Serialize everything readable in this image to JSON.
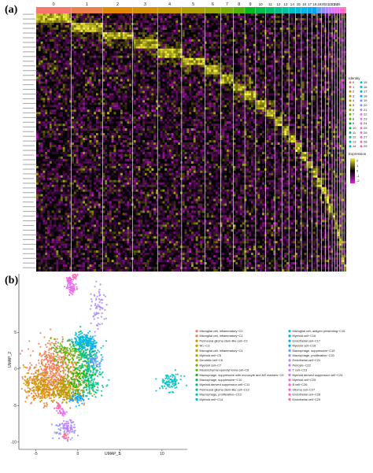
{
  "panels": {
    "a_label": "(a)",
    "b_label": "(b)"
  },
  "chart_data": [
    {
      "type": "heatmap",
      "panel": "(a)",
      "column_groups": [
        "0",
        "1",
        "2",
        "3",
        "4",
        "5",
        "6",
        "7",
        "8",
        "9",
        "10",
        "11",
        "12",
        "13",
        "14",
        "15",
        "16",
        "17",
        "18",
        "19",
        "20",
        "21",
        "22",
        "23",
        "24",
        "25",
        "26",
        "27",
        "28",
        "29"
      ],
      "group_header_labels": [
        "0",
        "1",
        "2",
        "3",
        "4",
        "5",
        "6",
        "7",
        "8",
        "9",
        "10",
        "11",
        "12",
        "13",
        "14",
        "15",
        "16",
        "17",
        "18",
        "19",
        "20",
        "21",
        "22",
        "23",
        "24",
        "25"
      ],
      "group_relative_widths": [
        42,
        38,
        36,
        30,
        29,
        28,
        19,
        15,
        14,
        13,
        12,
        11,
        9,
        8,
        8,
        7,
        7,
        6,
        6,
        5,
        5,
        4,
        4,
        3,
        3,
        3,
        2,
        2,
        2,
        2
      ],
      "identity_legend": {
        "title": "Identity",
        "entries": [
          "0",
          "1",
          "2",
          "3",
          "4",
          "5",
          "6",
          "7",
          "8",
          "9",
          "10",
          "11",
          "12",
          "13",
          "14",
          "15",
          "16",
          "17",
          "18",
          "19",
          "20",
          "21",
          "22",
          "23",
          "24",
          "25",
          "26",
          "27",
          "28",
          "29"
        ]
      },
      "color_scale": {
        "title": "Expression",
        "ticks": [
          "2",
          "1",
          "0",
          "-1",
          "-2"
        ],
        "range": [
          -2.5,
          2.5
        ],
        "colors": {
          "high": "#f5ee3c",
          "mid": "#000000",
          "low": "#e01ee0"
        }
      },
      "identity_colors": [
        "#f8766d",
        "#ef7f49",
        "#e38900",
        "#d59100",
        "#c49a00",
        "#b09f00",
        "#99a800",
        "#7cae00",
        "#53b400",
        "#00b81f",
        "#00bb4e",
        "#00be6c",
        "#00c08b",
        "#00c1a3",
        "#00bfc4",
        "#00bcd8",
        "#00b6eb",
        "#00aef7",
        "#00a5ff",
        "#619cff",
        "#8f91ff",
        "#ac88ff",
        "#c77cff",
        "#db72fb",
        "#e76bf3",
        "#f166e8",
        "#fa62db",
        "#ff61c3",
        "#ff64b0",
        "#ff6c91"
      ]
    },
    {
      "type": "scatter",
      "panel": "(b)",
      "xlabel": "UMAP_1",
      "ylabel": "UMAP_2",
      "xticks": [
        -5,
        0,
        5,
        10
      ],
      "yticks": [
        5,
        0,
        -5,
        -10
      ],
      "xlim": [
        -7,
        13
      ],
      "ylim": [
        -11,
        13
      ],
      "clusters": [
        {
          "id": 0,
          "label": "Microglial cell, inflammatory−C0",
          "color": "#f8766d",
          "cx": -3.2,
          "cy": -0.8,
          "sx": 1.4,
          "sy": 1.8,
          "n": 260
        },
        {
          "id": 1,
          "label": "Microglial cell, inflammatory−C1",
          "color": "#ef7f49",
          "cx": -2.6,
          "cy": 1.2,
          "sx": 1.3,
          "sy": 1.7,
          "n": 200
        },
        {
          "id": 2,
          "label": "Perineural glioma stem-like cell−C2",
          "color": "#e38900",
          "cx": -4.2,
          "cy": -3.0,
          "sx": 1.0,
          "sy": 0.9,
          "n": 140
        },
        {
          "id": 3,
          "label": "NC−C3",
          "color": "#d59100",
          "cx": -2.0,
          "cy": -2.6,
          "sx": 1.2,
          "sy": 0.9,
          "n": 130
        },
        {
          "id": 4,
          "label": "Microglial cell, inflammatory−C4",
          "color": "#c49a00",
          "cx": -4.8,
          "cy": -1.8,
          "sx": 0.8,
          "sy": 1.1,
          "n": 110
        },
        {
          "id": 5,
          "label": "Myeloid cell−C5",
          "color": "#b09f00",
          "cx": -1.0,
          "cy": -3.2,
          "sx": 1.0,
          "sy": 0.7,
          "n": 100
        },
        {
          "id": 6,
          "label": "Dendritic cell−C6",
          "color": "#99a800",
          "cx": -0.6,
          "cy": -1.6,
          "sx": 1.0,
          "sy": 1.0,
          "n": 90
        },
        {
          "id": 7,
          "label": "Myeloid cell−C7",
          "color": "#7cae00",
          "cx": -0.2,
          "cy": 0.2,
          "sx": 0.9,
          "sy": 1.4,
          "n": 90
        },
        {
          "id": 8,
          "label": "Mesenchymal ependymoma cell−C8",
          "color": "#53b400",
          "cx": -1.6,
          "cy": 2.4,
          "sx": 0.8,
          "sy": 0.8,
          "n": 80
        },
        {
          "id": 9,
          "label": "Macrophage, suppressive with monocyte and M2 markers−C9",
          "color": "#00b81f",
          "cx": 0.8,
          "cy": -1.0,
          "sx": 0.8,
          "sy": 1.0,
          "n": 80
        },
        {
          "id": 10,
          "label": "Macrophage, suppressive−C10",
          "color": "#00bb4e",
          "cx": 0.6,
          "cy": 2.8,
          "sx": 0.7,
          "sy": 0.9,
          "n": 80
        },
        {
          "id": 11,
          "label": "Myeloid derived suppressor cell−C11",
          "color": "#00be6c",
          "cx": 1.2,
          "cy": 1.6,
          "sx": 0.7,
          "sy": 0.8,
          "n": 70
        },
        {
          "id": 12,
          "label": "Perineural glioma stem-like cell−C12",
          "color": "#00c08b",
          "cx": 1.6,
          "cy": -2.0,
          "sx": 0.7,
          "sy": 0.8,
          "n": 70
        },
        {
          "id": 13,
          "label": "Macrophage, proliferative−C13",
          "color": "#00c1a3",
          "cx": 1.6,
          "cy": 0.2,
          "sx": 0.6,
          "sy": 1.4,
          "n": 70
        },
        {
          "id": 14,
          "label": "Myeloid cell−C14",
          "color": "#00bfc4",
          "cx": 11.0,
          "cy": -1.8,
          "sx": 0.7,
          "sy": 0.6,
          "n": 90
        },
        {
          "id": 15,
          "label": "Microglial cell, antigen presenting−C15",
          "color": "#00bcd8",
          "cx": 0.4,
          "cy": 3.6,
          "sx": 0.7,
          "sy": 0.5,
          "n": 60
        },
        {
          "id": 16,
          "label": "Myeloid cell−C16",
          "color": "#00b6eb",
          "cx": 0.8,
          "cy": 4.2,
          "sx": 0.6,
          "sy": 0.4,
          "n": 60
        },
        {
          "id": 17,
          "label": "Endothelial cell−C17",
          "color": "#00aef7",
          "cx": 1.5,
          "cy": 3.2,
          "sx": 0.5,
          "sy": 0.5,
          "n": 50
        },
        {
          "id": 18,
          "label": "Myeloid cell−C18",
          "color": "#00a5ff",
          "cx": 0.0,
          "cy": -4.0,
          "sx": 0.5,
          "sy": 0.4,
          "n": 50
        },
        {
          "id": 19,
          "label": "Macrophage, suppressive−C19",
          "color": "#619cff",
          "cx": 2.0,
          "cy": 1.0,
          "sx": 0.5,
          "sy": 0.6,
          "n": 50
        },
        {
          "id": 20,
          "label": "Macrophage, proliferative−C20",
          "color": "#8f91ff",
          "cx": -1.6,
          "cy": -8.4,
          "sx": 0.7,
          "sy": 0.6,
          "n": 60
        },
        {
          "id": 21,
          "label": "Endothelial cell−C21",
          "color": "#ac88ff",
          "cx": 2.4,
          "cy": 8.0,
          "sx": 0.4,
          "sy": 1.6,
          "n": 70
        },
        {
          "id": 22,
          "label": "Pericyte−C22",
          "color": "#c77cff",
          "cx": -1.2,
          "cy": -7.8,
          "sx": 0.4,
          "sy": 0.4,
          "n": 40
        },
        {
          "id": 23,
          "label": "T cell−C23",
          "color": "#db72fb",
          "cx": -0.8,
          "cy": 11.6,
          "sx": 0.3,
          "sy": 0.5,
          "n": 40
        },
        {
          "id": 24,
          "label": "Myeloid derived suppressor cell−C24",
          "color": "#e76bf3",
          "cx": -1.8,
          "cy": -6.0,
          "sx": 0.2,
          "sy": 0.3,
          "n": 20
        },
        {
          "id": 25,
          "label": "Myeloid cell−C25",
          "color": "#f166e8",
          "cx": -0.6,
          "cy": 10.8,
          "sx": 0.3,
          "sy": 0.3,
          "n": 25
        },
        {
          "id": 26,
          "label": "B cell−C26",
          "color": "#fa62db",
          "cx": -1.0,
          "cy": 12.2,
          "sx": 0.2,
          "sy": 0.2,
          "n": 20
        },
        {
          "id": 27,
          "label": "Glioma cell−C27",
          "color": "#ff61c3",
          "cx": -2.2,
          "cy": -5.2,
          "sx": 0.2,
          "sy": 0.3,
          "n": 20
        },
        {
          "id": 28,
          "label": "Endothelial cell−C28",
          "color": "#ff64b0",
          "cx": -0.4,
          "cy": 12.6,
          "sx": 0.15,
          "sy": 0.2,
          "n": 15
        },
        {
          "id": 29,
          "label": "Endothelial cell−C29",
          "color": "#ff6c91",
          "cx": -1.4,
          "cy": -9.2,
          "sx": 0.25,
          "sy": 0.2,
          "n": 15
        }
      ]
    }
  ]
}
